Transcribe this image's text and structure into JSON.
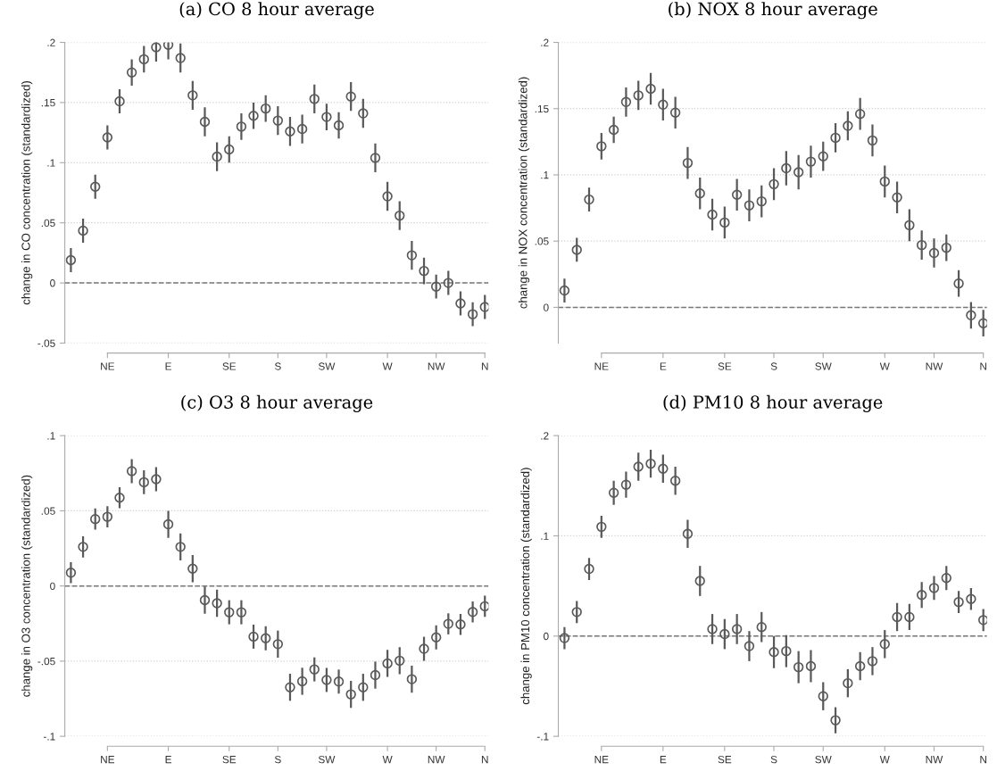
{
  "chart_data": [
    {
      "type": "scatter",
      "title": "(a) CO 8 hour average",
      "ylabel": "change in CO concentration (standardized)",
      "categories": [
        null,
        null,
        null,
        "NE",
        null,
        null,
        null,
        null,
        "E",
        null,
        null,
        null,
        null,
        "SE",
        null,
        null,
        null,
        "S",
        null,
        null,
        null,
        "SW",
        null,
        null,
        null,
        null,
        "W",
        null,
        null,
        null,
        "NW",
        null,
        null,
        null,
        "N"
      ],
      "series": [
        {
          "color": "#595959",
          "values": [
            0.019,
            0.0435,
            0.08,
            0.121,
            0.151,
            0.175,
            0.186,
            0.196,
            0.198,
            0.187,
            0.156,
            0.134,
            0.105,
            0.111,
            0.13,
            0.139,
            0.145,
            0.135,
            0.126,
            0.128,
            0.153,
            0.138,
            0.131,
            0.155,
            0.141,
            0.104,
            0.072,
            0.056,
            0.023,
            0.01,
            -0.003,
            0,
            -0.017,
            -0.026,
            -0.02
          ],
          "errors": [
            0.01,
            0.01,
            0.01,
            0.01,
            0.01,
            0.011,
            0.011,
            0.012,
            0.012,
            0.012,
            0.012,
            0.012,
            0.012,
            0.011,
            0.011,
            0.011,
            0.011,
            0.012,
            0.012,
            0.012,
            0.012,
            0.011,
            0.011,
            0.012,
            0.012,
            0.012,
            0.012,
            0.012,
            0.012,
            0.011,
            0.01,
            0.01,
            0.01,
            0.01,
            0.01
          ]
        }
      ],
      "ylim": [
        -0.05,
        0.2
      ],
      "yticks": [
        {
          "value": -0.05,
          "label": "-.05"
        },
        0,
        {
          "value": 0.05,
          "label": ".05"
        },
        {
          "value": 0.1,
          "label": ".1"
        },
        {
          "value": 0.15,
          "label": ".15"
        },
        {
          "value": 0.2,
          "label": ".2"
        }
      ],
      "ref_lines": [
        {
          "axis": "y",
          "value": 0,
          "line_style": "dashed",
          "color": "#777777"
        }
      ],
      "grid": "y",
      "marker": "circle"
    },
    {
      "type": "scatter",
      "title": "(b) NOX 8 hour average",
      "ylabel": "change in NOX concentration (standardized)",
      "categories": [
        null,
        null,
        null,
        "NE",
        null,
        null,
        null,
        null,
        "E",
        null,
        null,
        null,
        null,
        "SE",
        null,
        null,
        null,
        "S",
        null,
        null,
        null,
        "SW",
        null,
        null,
        null,
        null,
        "W",
        null,
        null,
        null,
        "NW",
        null,
        null,
        null,
        "N"
      ],
      "series": [
        {
          "color": "#595959",
          "values": [
            0.0127,
            0.0434,
            0.0814,
            0.1216,
            0.134,
            0.155,
            0.16,
            0.165,
            0.153,
            0.147,
            0.109,
            0.086,
            0.07,
            0.064,
            0.085,
            0.077,
            0.08,
            0.093,
            0.105,
            0.102,
            0.11,
            0.114,
            0.128,
            0.137,
            0.146,
            0.126,
            0.095,
            0.083,
            0.062,
            0.047,
            0.041,
            0.045,
            0.018,
            -0.006,
            -0.012
          ],
          "errors": [
            0.009,
            0.009,
            0.009,
            0.01,
            0.01,
            0.011,
            0.011,
            0.012,
            0.012,
            0.012,
            0.012,
            0.012,
            0.012,
            0.012,
            0.012,
            0.012,
            0.012,
            0.012,
            0.013,
            0.013,
            0.012,
            0.011,
            0.011,
            0.011,
            0.012,
            0.012,
            0.012,
            0.012,
            0.012,
            0.011,
            0.011,
            0.01,
            0.01,
            0.01,
            0.01
          ]
        }
      ],
      "ylim": [
        -0.027,
        0.2
      ],
      "yticks": [
        0,
        {
          "value": 0.05,
          "label": ".05"
        },
        {
          "value": 0.1,
          "label": ".1"
        },
        {
          "value": 0.15,
          "label": ".15"
        },
        {
          "value": 0.2,
          "label": ".2"
        }
      ],
      "ref_lines": [
        {
          "axis": "y",
          "value": 0,
          "line_style": "dashed",
          "color": "#777777"
        }
      ],
      "grid": "y",
      "marker": "circle"
    },
    {
      "type": "scatter",
      "title": "(c) O3 8 hour average",
      "ylabel": "change in O3 concentration (standardized)",
      "categories": [
        null,
        null,
        null,
        "NE",
        null,
        null,
        null,
        null,
        "E",
        null,
        null,
        null,
        null,
        "SE",
        null,
        null,
        null,
        "S",
        null,
        null,
        null,
        "SW",
        null,
        null,
        null,
        null,
        "W",
        null,
        null,
        null,
        "NW",
        null,
        null,
        null,
        "N"
      ],
      "series": [
        {
          "color": "#595959",
          "values": [
            0.0088,
            0.026,
            0.0445,
            0.046,
            0.0587,
            0.0764,
            0.069,
            0.071,
            0.041,
            0.026,
            0.0115,
            -0.0094,
            -0.0115,
            -0.0175,
            -0.0175,
            -0.0337,
            -0.0348,
            -0.0387,
            -0.0674,
            -0.0634,
            -0.0555,
            -0.0625,
            -0.0636,
            -0.0721,
            -0.0674,
            -0.0593,
            -0.0515,
            -0.0497,
            -0.062,
            -0.0418,
            -0.0342,
            -0.0252,
            -0.0256,
            -0.0173,
            -0.0135
          ],
          "errors": [
            0.007,
            0.007,
            0.007,
            0.007,
            0.007,
            0.008,
            0.008,
            0.008,
            0.009,
            0.009,
            0.009,
            0.009,
            0.009,
            0.008,
            0.008,
            0.008,
            0.008,
            0.009,
            0.009,
            0.009,
            0.008,
            0.008,
            0.008,
            0.009,
            0.009,
            0.009,
            0.009,
            0.009,
            0.009,
            0.008,
            0.008,
            0.007,
            0.007,
            0.007,
            0.007
          ]
        }
      ],
      "ylim": [
        -0.1,
        0.1
      ],
      "yticks": [
        {
          "value": -0.1,
          "label": "-.1"
        },
        {
          "value": -0.05,
          "label": "-.05"
        },
        0,
        {
          "value": 0.05,
          "label": ".05"
        },
        {
          "value": 0.1,
          "label": ".1"
        }
      ],
      "ref_lines": [
        {
          "axis": "y",
          "value": 0,
          "line_style": "dashed",
          "color": "#777777"
        }
      ],
      "grid": "y",
      "marker": "circle"
    },
    {
      "type": "scatter",
      "title": "(d) PM10 8 hour average",
      "ylabel": "change in PM10 concentration (standardized)",
      "categories": [
        null,
        null,
        null,
        "NE",
        null,
        null,
        null,
        null,
        "E",
        null,
        null,
        null,
        null,
        "SE",
        null,
        null,
        null,
        "S",
        null,
        null,
        null,
        "SW",
        null,
        null,
        null,
        null,
        "W",
        null,
        null,
        null,
        "NW",
        null,
        null,
        null,
        "N"
      ],
      "series": [
        {
          "color": "#595959",
          "values": [
            -0.002,
            0.024,
            0.067,
            0.109,
            0.143,
            0.151,
            0.169,
            0.172,
            0.167,
            0.155,
            0.102,
            0.055,
            0.007,
            0.002,
            0.007,
            -0.01,
            0.009,
            -0.016,
            -0.015,
            -0.031,
            -0.03,
            -0.06,
            -0.084,
            -0.047,
            -0.03,
            -0.025,
            -0.008,
            0.019,
            0.019,
            0.041,
            0.048,
            0.058,
            0.034,
            0.037,
            0.016
          ],
          "errors": [
            0.011,
            0.011,
            0.011,
            0.011,
            0.012,
            0.013,
            0.014,
            0.014,
            0.014,
            0.014,
            0.014,
            0.015,
            0.015,
            0.015,
            0.015,
            0.015,
            0.015,
            0.016,
            0.016,
            0.016,
            0.016,
            0.014,
            0.013,
            0.014,
            0.014,
            0.014,
            0.014,
            0.014,
            0.013,
            0.013,
            0.012,
            0.012,
            0.011,
            0.011,
            0.011
          ]
        }
      ],
      "ylim": [
        -0.1,
        0.2
      ],
      "yticks": [
        {
          "value": -0.1,
          "label": "-.1"
        },
        0,
        {
          "value": 0.1,
          "label": ".1"
        },
        {
          "value": 0.2,
          "label": ".2"
        }
      ],
      "ref_lines": [
        {
          "axis": "y",
          "value": 0,
          "line_style": "dashed",
          "color": "#777777"
        }
      ],
      "grid": "y",
      "marker": "circle"
    }
  ]
}
